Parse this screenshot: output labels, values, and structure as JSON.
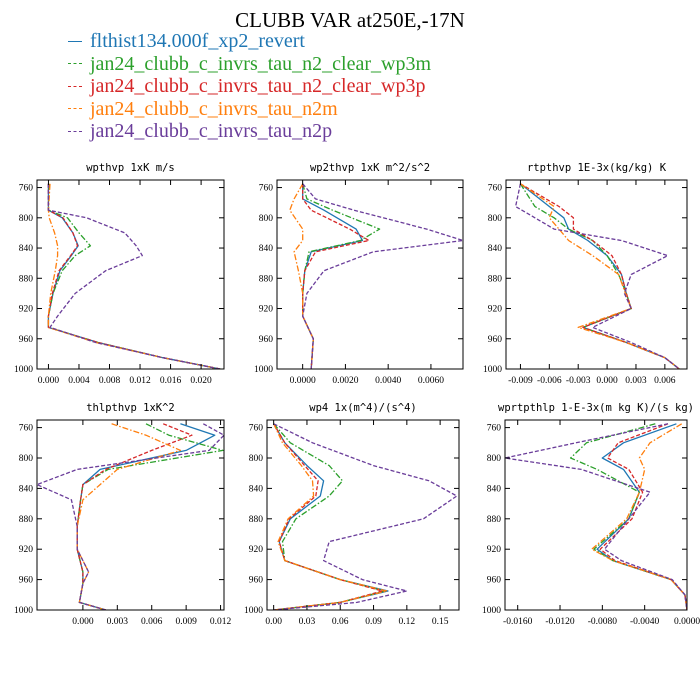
{
  "figure": {
    "title": "CLUBB VAR at250E,-17N",
    "legend": [
      {
        "label": "flthist134.000f_xp2_revert",
        "color": "#1f77b4",
        "dash": "solid"
      },
      {
        "label": "jan24_clubb_c_invrs_tau_n2_clear_wp3m",
        "color": "#2ca02c",
        "dash": "dashdot"
      },
      {
        "label": "jan24_clubb_c_invrs_tau_n2_clear_wp3p",
        "color": "#d62728",
        "dash": "dash"
      },
      {
        "label": "jan24_clubb_c_invrs_tau_n2m",
        "color": "#ff7f0e",
        "dash": "dashdot"
      },
      {
        "label": "jan24_clubb_c_invrs_tau_n2p",
        "color": "#6a3d9a",
        "dash": "dash"
      }
    ]
  },
  "chart_data": [
    {
      "type": "line",
      "title": "wpthvp  1xK m/s",
      "y_axis": {
        "range": [
          1000,
          750
        ],
        "ticks": [
          "760",
          "800",
          "840",
          "880",
          "920",
          "960",
          "1000"
        ]
      },
      "x_axis": {
        "range": [
          -0.0015,
          0.023
        ],
        "ticks": [
          "0.000",
          "0.004",
          "0.008",
          "0.012",
          "0.016",
          "0.020"
        ]
      },
      "y": [
        755,
        790,
        800,
        820,
        837,
        850,
        870,
        900,
        930,
        945,
        965,
        985,
        1000
      ],
      "series": [
        {
          "values": [
            0.0,
            0.0,
            0.0018,
            0.0032,
            0.0039,
            0.003,
            0.0015,
            0.0006,
            0.0,
            0.0,
            0.0065,
            0.015,
            0.0225
          ]
        },
        {
          "values": [
            0.0001,
            0.0,
            0.0025,
            0.004,
            0.0055,
            0.0035,
            0.0018,
            0.0006,
            0.0,
            0.0,
            0.0065,
            0.015,
            0.0225
          ]
        },
        {
          "values": [
            0.0,
            0.0,
            0.0019,
            0.0032,
            0.0038,
            0.0029,
            0.0014,
            0.0005,
            0.0,
            0.0,
            0.0065,
            0.015,
            0.0225
          ]
        },
        {
          "values": [
            0.0002,
            0.0,
            0.0001,
            0.0008,
            0.0012,
            0.0012,
            0.0009,
            0.0003,
            0.0,
            0.0,
            0.0062,
            0.015,
            0.0225
          ]
        },
        {
          "values": [
            0.0,
            0.0,
            0.005,
            0.01,
            0.0115,
            0.0123,
            0.0075,
            0.0035,
            0.0012,
            0.0002,
            0.0062,
            0.015,
            0.0225
          ]
        }
      ]
    },
    {
      "type": "line",
      "title": "wp2thvp  1xK m^2/s^2",
      "y_axis": {
        "range": [
          1000,
          750
        ],
        "ticks": [
          "760",
          "800",
          "840",
          "880",
          "920",
          "960",
          "1000"
        ]
      },
      "x_axis": {
        "range": [
          -0.0012,
          0.0075
        ],
        "ticks": [
          "0.0000",
          "0.0020",
          "0.0040",
          "0.0060"
        ]
      },
      "y": [
        755,
        775,
        790,
        815,
        830,
        845,
        870,
        900,
        930,
        960,
        1000
      ],
      "series": [
        {
          "values": [
            0.0,
            0.0,
            0.001,
            0.0025,
            0.0028,
            0.0004,
            0.0001,
            0.0,
            0.0,
            0.0005,
            0.0004
          ]
        },
        {
          "values": [
            0.0,
            0.0002,
            0.0014,
            0.0036,
            0.0027,
            0.0003,
            0.0001,
            0.0,
            0.0,
            0.0005,
            0.0004
          ]
        },
        {
          "values": [
            0.0,
            0.0,
            0.0004,
            0.0022,
            0.0031,
            0.0006,
            0.0001,
            0.0,
            0.0,
            0.0005,
            0.0004
          ]
        },
        {
          "values": [
            0.0,
            -0.0004,
            -0.0006,
            0.0,
            0.0,
            -0.0004,
            -0.0002,
            0.0,
            0.0,
            0.0005,
            0.0004
          ]
        },
        {
          "values": [
            0.0,
            0.0006,
            0.0024,
            0.0058,
            0.0075,
            0.0033,
            0.001,
            0.0002,
            0.0,
            0.0005,
            0.0004
          ]
        }
      ]
    },
    {
      "type": "line",
      "title": "rtpthvp  1E-3x(kg/kg) K",
      "y_axis": {
        "range": [
          1000,
          750
        ],
        "ticks": [
          "760",
          "800",
          "840",
          "880",
          "920",
          "960",
          "1000"
        ]
      },
      "x_axis": {
        "range": [
          -0.0105,
          0.0083
        ],
        "ticks": [
          "-0.009",
          "-0.006",
          "-0.003",
          "0.000",
          "0.003",
          "0.006"
        ]
      },
      "y": [
        755,
        785,
        800,
        815,
        830,
        850,
        875,
        900,
        920,
        945,
        965,
        985,
        1000
      ],
      "series": [
        {
          "values": [
            -0.009,
            -0.006,
            -0.0045,
            -0.004,
            -0.002,
            0.0,
            0.0015,
            0.002,
            0.0025,
            -0.0025,
            0.002,
            0.006,
            0.0075
          ]
        },
        {
          "values": [
            -0.009,
            -0.0075,
            -0.0055,
            -0.004,
            -0.0015,
            0.0,
            0.0012,
            0.002,
            0.0025,
            -0.0025,
            0.002,
            0.006,
            0.0075
          ]
        },
        {
          "values": [
            -0.009,
            -0.005,
            -0.0035,
            -0.0035,
            -0.0015,
            0.0005,
            0.0015,
            0.002,
            0.0025,
            -0.0025,
            0.002,
            0.006,
            0.0075
          ]
        },
        {
          "values": [
            -0.009,
            -0.0055,
            -0.006,
            -0.005,
            -0.004,
            -0.0015,
            0.0012,
            0.0019,
            0.0025,
            -0.003,
            0.002,
            0.006,
            0.0075
          ]
        },
        {
          "values": [
            -0.009,
            -0.0095,
            -0.0075,
            -0.0055,
            0.0015,
            0.0063,
            0.0025,
            0.0018,
            0.0025,
            -0.0015,
            0.0025,
            0.006,
            0.0075
          ]
        }
      ]
    },
    {
      "type": "line",
      "title": "thlpthvp  1xK^2",
      "y_axis": {
        "range": [
          1000,
          750
        ],
        "ticks": [
          "760",
          "800",
          "840",
          "880",
          "920",
          "960",
          "1000"
        ]
      },
      "x_axis": {
        "range": [
          -0.004,
          0.0123
        ],
        "ticks": [
          "0.000",
          "0.003",
          "0.006",
          "0.009",
          "0.012"
        ]
      },
      "y": [
        755,
        770,
        790,
        815,
        835,
        855,
        890,
        920,
        950,
        965,
        990,
        1000
      ],
      "series": [
        {
          "values": [
            0.0085,
            0.0115,
            0.009,
            0.0015,
            0.0,
            -0.0002,
            -0.0005,
            -0.0005,
            0.0,
            0.0,
            -0.0003,
            0.002
          ]
        },
        {
          "values": [
            0.0055,
            0.0075,
            0.0122,
            0.0022,
            0.0,
            -0.0002,
            -0.0005,
            -0.0005,
            0.0,
            0.0,
            -0.0003,
            0.002
          ]
        },
        {
          "values": [
            0.007,
            0.0095,
            0.006,
            0.002,
            0.0,
            -0.0002,
            -0.0005,
            -0.0005,
            0.0,
            0.0,
            -0.0003,
            0.002
          ]
        },
        {
          "values": [
            0.0025,
            0.0055,
            0.0085,
            0.003,
            0.0015,
            0.0,
            -0.0005,
            -0.0005,
            0.0005,
            0.0,
            -0.0003,
            0.002
          ]
        },
        {
          "values": [
            0.0105,
            0.0123,
            0.011,
            -0.0005,
            -0.004,
            -0.001,
            -0.0005,
            -0.0005,
            0.0005,
            0.0,
            -0.0003,
            0.002
          ]
        }
      ]
    },
    {
      "type": "line",
      "title": "wp4  1x(m^4)/(s^4)",
      "y_axis": {
        "range": [
          1000,
          750
        ],
        "ticks": [
          "760",
          "800",
          "840",
          "880",
          "920",
          "960",
          "1000"
        ]
      },
      "x_axis": {
        "range": [
          -0.006,
          0.167
        ],
        "ticks": [
          "0.00",
          "0.03",
          "0.06",
          "0.09",
          "0.12",
          "0.15"
        ]
      },
      "y": [
        755,
        780,
        810,
        830,
        850,
        880,
        910,
        935,
        960,
        975,
        990,
        1000
      ],
      "series": [
        {
          "values": [
            0.0,
            0.01,
            0.03,
            0.045,
            0.042,
            0.015,
            0.005,
            0.01,
            0.06,
            0.103,
            0.06,
            0.0
          ]
        },
        {
          "values": [
            0.0,
            0.015,
            0.05,
            0.062,
            0.05,
            0.02,
            0.008,
            0.01,
            0.06,
            0.1,
            0.06,
            0.0
          ]
        },
        {
          "values": [
            0.0,
            0.01,
            0.028,
            0.04,
            0.038,
            0.014,
            0.005,
            0.01,
            0.06,
            0.098,
            0.06,
            0.0
          ]
        },
        {
          "values": [
            0.0,
            0.008,
            0.025,
            0.035,
            0.036,
            0.013,
            0.004,
            0.01,
            0.06,
            0.102,
            0.06,
            0.0
          ]
        },
        {
          "values": [
            0.0,
            0.035,
            0.09,
            0.14,
            0.165,
            0.135,
            0.05,
            0.045,
            0.08,
            0.12,
            0.075,
            0.0
          ]
        }
      ]
    },
    {
      "type": "line",
      "title": "wprtpthlp  1-E-3x(m kg K)/(s kg)",
      "y_axis": {
        "range": [
          1000,
          750
        ],
        "ticks": [
          "760",
          "800",
          "840",
          "880",
          "920",
          "960",
          "1000"
        ]
      },
      "x_axis": {
        "range": [
          -0.0172,
          0.0
        ],
        "ticks": [
          "-0.0160",
          "-0.0120",
          "-0.0080",
          "-0.0040",
          "0.0000"
        ]
      },
      "y": [
        755,
        780,
        800,
        815,
        845,
        880,
        920,
        935,
        960,
        980,
        1000
      ],
      "series": [
        {
          "values": [
            -0.001,
            -0.006,
            -0.008,
            -0.006,
            -0.0045,
            -0.0055,
            -0.0085,
            -0.007,
            -0.0015,
            -0.0002,
            0.0
          ]
        },
        {
          "values": [
            -0.003,
            -0.0095,
            -0.011,
            -0.0085,
            -0.0045,
            -0.0055,
            -0.0088,
            -0.007,
            -0.0015,
            -0.0002,
            0.0
          ]
        },
        {
          "values": [
            -0.0018,
            -0.0065,
            -0.0075,
            -0.0055,
            -0.0042,
            -0.0052,
            -0.0082,
            -0.0068,
            -0.0015,
            -0.0002,
            0.0
          ]
        },
        {
          "values": [
            -0.0005,
            -0.0035,
            -0.0045,
            -0.004,
            -0.0045,
            -0.0057,
            -0.009,
            -0.007,
            -0.0015,
            -0.0002,
            0.0
          ]
        },
        {
          "values": [
            -0.0018,
            -0.0105,
            -0.0172,
            -0.01,
            -0.0035,
            -0.0055,
            -0.0078,
            -0.0062,
            -0.0014,
            -0.0002,
            0.0
          ]
        }
      ]
    }
  ]
}
